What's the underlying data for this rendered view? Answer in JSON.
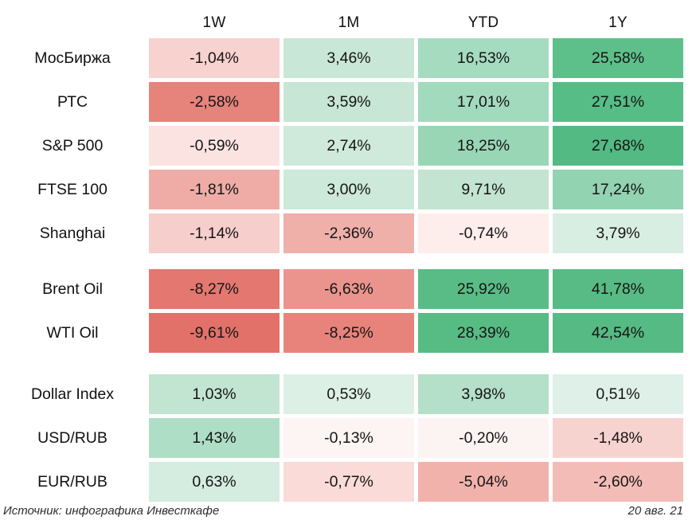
{
  "chart_data": {
    "type": "heatmap",
    "title": "",
    "columns": [
      "1W",
      "1M",
      "YTD",
      "1Y"
    ],
    "value_unit": "%",
    "legend_position": "none",
    "grid": false,
    "color_scale": {
      "negative": "#e2716a",
      "neutral": "#ffffff",
      "positive": "#55ba83"
    },
    "sections": [
      {
        "name": "equity-indices",
        "rows": [
          {
            "label": "МосБиржа",
            "values": [
              "-1,04%",
              "3,46%",
              "16,53%",
              "25,58%"
            ],
            "numeric": [
              -1.04,
              3.46,
              16.53,
              25.58
            ],
            "colors": [
              "#f8d2cf",
              "#c9e7d6",
              "#a5dcc0",
              "#5dc08b"
            ]
          },
          {
            "label": "РТС",
            "values": [
              "-2,58%",
              "3,59%",
              "17,01%",
              "27,51%"
            ],
            "numeric": [
              -2.58,
              3.59,
              17.01,
              27.51
            ],
            "colors": [
              "#e6837b",
              "#c7e6d5",
              "#a2dabd",
              "#56bd86"
            ]
          },
          {
            "label": "S&P 500",
            "values": [
              "-0,59%",
              "2,74%",
              "18,25%",
              "27,68%"
            ],
            "numeric": [
              -0.59,
              2.74,
              18.25,
              27.68
            ],
            "colors": [
              "#fbe3e1",
              "#cfe9da",
              "#98d6b6",
              "#52ba82"
            ]
          },
          {
            "label": "FTSE 100",
            "values": [
              "-1,81%",
              "3,00%",
              "9,71%",
              "17,24%"
            ],
            "numeric": [
              -1.81,
              3.0,
              9.71,
              17.24
            ],
            "colors": [
              "#efaca6",
              "#cde9d9",
              "#c2e4d1",
              "#92d3b2"
            ]
          },
          {
            "label": "Shanghai",
            "values": [
              "-1,14%",
              "-2,36%",
              "-0,74%",
              "3,79%"
            ],
            "numeric": [
              -1.14,
              -2.36,
              -0.74,
              3.79
            ],
            "colors": [
              "#f6cecb",
              "#efb0aa",
              "#fdedeb",
              "#d9eee3"
            ]
          }
        ]
      },
      {
        "name": "commodities",
        "rows": [
          {
            "label": "Brent Oil",
            "values": [
              "-8,27%",
              "-6,63%",
              "25,92%",
              "41,78%"
            ],
            "numeric": [
              -8.27,
              -6.63,
              25.92,
              41.78
            ],
            "colors": [
              "#e4776f",
              "#ea948d",
              "#59bc86",
              "#58bb85"
            ]
          },
          {
            "label": "WTI Oil",
            "values": [
              "-9,61%",
              "-8,25%",
              "28,39%",
              "42,54%"
            ],
            "numeric": [
              -9.61,
              -8.25,
              28.39,
              42.54
            ],
            "colors": [
              "#e2716a",
              "#e8837b",
              "#57bb84",
              "#55ba83"
            ]
          }
        ]
      },
      {
        "name": "currencies",
        "rows": [
          {
            "label": "Dollar Index",
            "values": [
              "1,03%",
              "0,53%",
              "3,98%",
              "0,51%"
            ],
            "numeric": [
              1.03,
              0.53,
              3.98,
              0.51
            ],
            "colors": [
              "#c2e5d2",
              "#ddf0e6",
              "#b4dfc8",
              "#def0e7"
            ]
          },
          {
            "label": "USD/RUB",
            "values": [
              "1,43%",
              "-0,13%",
              "-0,20%",
              "-1,48%"
            ],
            "numeric": [
              1.43,
              -0.13,
              -0.2,
              -1.48
            ],
            "colors": [
              "#aedec6",
              "#fdf4f4",
              "#fcf3f3",
              "#f7d3cf"
            ]
          },
          {
            "label": "EUR/RUB",
            "values": [
              "0,63%",
              "-0,77%",
              "-5,04%",
              "-2,60%"
            ],
            "numeric": [
              0.63,
              -0.77,
              -5.04,
              -2.6
            ],
            "colors": [
              "#d5ece0",
              "#fadbd7",
              "#f2b2ac",
              "#f4bcb6"
            ]
          }
        ]
      }
    ]
  },
  "footer": {
    "source": "Источник: инфографика Инвесткафе",
    "date": "20 авг. 21"
  }
}
